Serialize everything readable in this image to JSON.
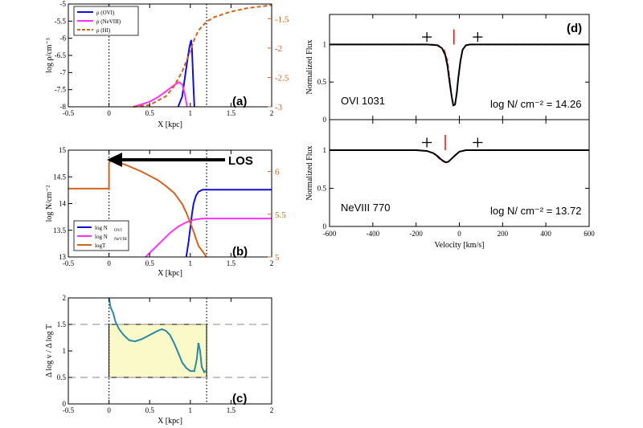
{
  "colors": {
    "ovi": "#1010d8",
    "neviii": "#ff33ff",
    "hi": "#d2641e",
    "temp": "#d2641e",
    "grad": "#2b88a8",
    "band": "#fafac8",
    "fit": "#e0201c",
    "data": "#000000"
  },
  "chart_data": [
    {
      "id": "a",
      "type": "line",
      "panel_label": "(a)",
      "xlabel": "X [kpc]",
      "ylabel": "log ρ/cm⁻³",
      "xlim": [
        -0.5,
        2
      ],
      "ylim": [
        -8,
        -5
      ],
      "y2lim": [
        -3,
        -1.25
      ],
      "xticks": [
        "-0.5",
        "0",
        "0.5",
        "1",
        "1.5",
        "2"
      ],
      "yticks": [
        "-8",
        "-7.5",
        "-7",
        "-6.5",
        "-6",
        "-5.5",
        "-5"
      ],
      "y2ticks": [
        "-3",
        "-2.5",
        "-2",
        "-1.5"
      ],
      "vlines": [
        0,
        1.2
      ],
      "legend": [
        "ρ (OVI)",
        "ρ (NeVIII)",
        "ρ (HI)"
      ],
      "series": [
        {
          "name": "ρ (OVI)",
          "color_key": "ovi",
          "style": "solid",
          "x": [
            0.85,
            0.9,
            0.93,
            0.96,
            0.99,
            1.01,
            1.02,
            1.035,
            1.05
          ],
          "y": [
            -8,
            -7.7,
            -7.2,
            -6.7,
            -6.25,
            -6.05,
            -6.3,
            -7.2,
            -8
          ]
        },
        {
          "name": "ρ (NeVIII)",
          "color_key": "neviii",
          "style": "solid",
          "x": [
            0.3,
            0.4,
            0.5,
            0.6,
            0.7,
            0.8,
            0.86,
            0.9,
            0.93,
            0.96
          ],
          "y": [
            -8,
            -7.93,
            -7.85,
            -7.72,
            -7.55,
            -7.37,
            -7.28,
            -7.35,
            -7.6,
            -8
          ]
        },
        {
          "name": "ρ (HI)",
          "color_key": "hi",
          "style": "dashed",
          "axis": "right",
          "x": [
            0.3,
            0.5,
            0.7,
            0.8,
            0.9,
            1.0,
            1.05,
            1.1,
            1.2,
            1.3,
            1.5,
            1.7,
            2.0
          ],
          "y": [
            -3,
            -2.97,
            -2.82,
            -2.65,
            -2.4,
            -2.05,
            -1.85,
            -1.7,
            -1.55,
            -1.47,
            -1.38,
            -1.32,
            -1.27
          ]
        }
      ]
    },
    {
      "id": "b",
      "type": "line",
      "panel_label": "(b)",
      "xlabel": "X [kpc]",
      "ylabel": "log N/cm⁻²",
      "xlim": [
        -0.5,
        2
      ],
      "ylim": [
        13,
        15
      ],
      "y2lim": [
        5,
        6.25
      ],
      "xticks": [
        "-0.5",
        "0",
        "0.5",
        "1",
        "1.5",
        "2"
      ],
      "yticks": [
        "13",
        "13.5",
        "14",
        "14.5",
        "15"
      ],
      "y2ticks": [
        "5",
        "5.5",
        "6"
      ],
      "vlines": [
        0,
        1.2
      ],
      "arrow_label": "LOS",
      "legend": [
        "log N",
        "log N",
        "logT"
      ],
      "legend_sub": [
        "OVI",
        "NeVIII",
        ""
      ],
      "series": [
        {
          "name": "log N OVI",
          "color_key": "ovi",
          "style": "solid",
          "x": [
            0.95,
            0.98,
            1.0,
            1.02,
            1.04,
            1.07,
            1.1,
            1.15,
            1.2,
            2.0
          ],
          "y": [
            13,
            13.3,
            13.55,
            13.8,
            14.0,
            14.15,
            14.22,
            14.26,
            14.26,
            14.26
          ]
        },
        {
          "name": "log N NeVIII",
          "color_key": "neviii",
          "style": "solid",
          "x": [
            0.45,
            0.55,
            0.65,
            0.75,
            0.85,
            0.95,
            1.05,
            1.15,
            1.2,
            2.0
          ],
          "y": [
            13,
            13.15,
            13.3,
            13.45,
            13.57,
            13.65,
            13.7,
            13.72,
            13.72,
            13.72
          ]
        },
        {
          "name": "logT",
          "color_key": "temp",
          "style": "solid",
          "axis": "right",
          "x": [
            -0.5,
            0,
            0,
            0.02,
            0.2,
            0.4,
            0.6,
            0.7,
            0.8,
            0.9,
            0.95,
            1.0,
            1.05,
            1.1,
            1.2
          ],
          "y": [
            5.8,
            5.8,
            6.1,
            6.13,
            6.08,
            6.0,
            5.9,
            5.83,
            5.75,
            5.62,
            5.52,
            5.4,
            5.27,
            5.13,
            5.0
          ]
        }
      ]
    },
    {
      "id": "c",
      "type": "line",
      "panel_label": "(c)",
      "xlabel": "X [kpc]",
      "ylabel": "Δ log v / Δ log T",
      "xlim": [
        -0.5,
        2
      ],
      "ylim": [
        0,
        2
      ],
      "xticks": [
        "-0.5",
        "0",
        "0.5",
        "1",
        "1.5",
        "2"
      ],
      "yticks": [
        "0",
        "0.5",
        "1",
        "1.5",
        "2"
      ],
      "vlines": [
        0,
        1.2
      ],
      "hlines": [
        0.5,
        1.5
      ],
      "band_x": [
        0,
        1.2
      ],
      "band_y": [
        0.5,
        1.5
      ],
      "series": [
        {
          "name": "gradient",
          "color_key": "grad",
          "style": "solid",
          "x": [
            0,
            0.02,
            0.05,
            0.08,
            0.12,
            0.18,
            0.25,
            0.32,
            0.4,
            0.5,
            0.55,
            0.6,
            0.65,
            0.7,
            0.75,
            0.8,
            0.85,
            0.9,
            0.95,
            1.0,
            1.05,
            1.08,
            1.1,
            1.12,
            1.14,
            1.17,
            1.2
          ],
          "y": [
            2.0,
            1.82,
            1.72,
            1.55,
            1.42,
            1.3,
            1.2,
            1.18,
            1.22,
            1.3,
            1.34,
            1.38,
            1.41,
            1.38,
            1.3,
            1.15,
            0.97,
            0.78,
            0.68,
            0.62,
            0.62,
            0.85,
            1.15,
            1.0,
            0.7,
            0.6,
            0.63
          ]
        }
      ]
    },
    {
      "id": "d",
      "type": "line",
      "panel_label": "(d)",
      "xlabel": "Velocity [km/s]",
      "xlim": [
        -600,
        600
      ],
      "xticks": [
        "-600",
        "-400",
        "-200",
        "0",
        "200",
        "400",
        "600"
      ],
      "panels": [
        {
          "ylabel": "Normalized Flux",
          "ylim": [
            0,
            1.4
          ],
          "yticks": [
            "0",
            "0.5",
            "1"
          ],
          "ion": "OVI 1031",
          "column": "log N/ cm⁻² = 14.26",
          "markers_plus": [
            [
              -150,
              1.1
            ],
            [
              85,
              1.1
            ]
          ],
          "tick_mark": [
            -25,
            1.0,
            1.2
          ],
          "data_x": [
            -600,
            -150,
            -100,
            -80,
            -65,
            -55,
            -45,
            -35,
            -28,
            -20,
            -12,
            -5,
            5,
            15,
            30,
            50,
            80,
            600
          ],
          "data_y": [
            1.0,
            1.0,
            0.99,
            0.95,
            0.86,
            0.72,
            0.5,
            0.3,
            0.19,
            0.2,
            0.35,
            0.55,
            0.78,
            0.93,
            0.99,
            1.0,
            1.0,
            1.0
          ],
          "fit_x": [
            -600,
            -120,
            -100,
            -85,
            -70,
            -55,
            -45,
            -35,
            -28,
            -20,
            -12,
            -5,
            5,
            15,
            30,
            50,
            80,
            600
          ],
          "fit_y": [
            1.0,
            1.0,
            0.98,
            0.96,
            0.93,
            0.78,
            0.55,
            0.3,
            0.2,
            0.21,
            0.36,
            0.55,
            0.78,
            0.93,
            0.99,
            1.0,
            1.0,
            1.0
          ]
        },
        {
          "ylabel": "Normalized Flux",
          "ylim": [
            0,
            1.4
          ],
          "yticks": [
            "0",
            "0.5",
            "1"
          ],
          "ion": "NeVIII 770",
          "column": "log N/ cm⁻² = 13.72",
          "markers_plus": [
            [
              -150,
              1.1
            ],
            [
              85,
              1.1
            ]
          ],
          "tick_mark": [
            -65,
            1.0,
            1.2
          ],
          "data_x": [
            -600,
            -200,
            -150,
            -120,
            -100,
            -85,
            -70,
            -60,
            -50,
            -35,
            -20,
            0,
            30,
            80,
            600
          ],
          "data_y": [
            1.0,
            1.0,
            0.99,
            0.96,
            0.92,
            0.88,
            0.85,
            0.84,
            0.85,
            0.89,
            0.93,
            0.98,
            1.0,
            1.0,
            1.0
          ],
          "fit_x": [
            -600,
            -200,
            -150,
            -120,
            -100,
            -85,
            -70,
            -60,
            -50,
            -35,
            -20,
            0,
            30,
            80,
            600
          ],
          "fit_y": [
            1.0,
            1.0,
            0.99,
            0.96,
            0.91,
            0.87,
            0.845,
            0.84,
            0.85,
            0.89,
            0.93,
            0.98,
            1.0,
            1.0,
            1.0
          ]
        }
      ]
    }
  ]
}
